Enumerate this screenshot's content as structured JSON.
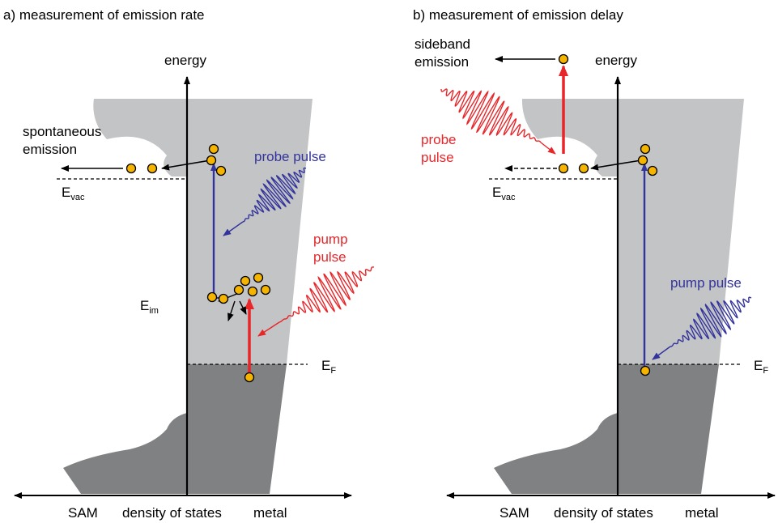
{
  "colors": {
    "light_band": "#c3c4c6",
    "dark_band": "#7f8183",
    "electron": "#f5b400",
    "probe_blue": "#33339c",
    "pump_red": "#e8262a"
  },
  "panel_a": {
    "title": "a) measurement of emission rate",
    "energy_label": "energy",
    "spontaneous_line1": "spontaneous",
    "spontaneous_line2": "emission",
    "evac_main": "E",
    "evac_sub": "vac",
    "eim_main": "E",
    "eim_sub": "im",
    "ef_main": "E",
    "ef_sub": "F",
    "probe_label": "probe pulse",
    "pump_line1": "pump",
    "pump_line2": "pulse",
    "axis_left": "SAM",
    "axis_mid": "density of states",
    "axis_right": "metal"
  },
  "panel_b": {
    "title": "b) measurement of emission delay",
    "energy_label": "energy",
    "sideband_line1": "sideband",
    "sideband_line2": "emission",
    "probe_line1": "probe",
    "probe_line2": "pulse",
    "evac_main": "E",
    "evac_sub": "vac",
    "ef_main": "E",
    "ef_sub": "F",
    "pump_label": "pump pulse",
    "axis_left": "SAM",
    "axis_mid": "density of states",
    "axis_right": "metal"
  }
}
